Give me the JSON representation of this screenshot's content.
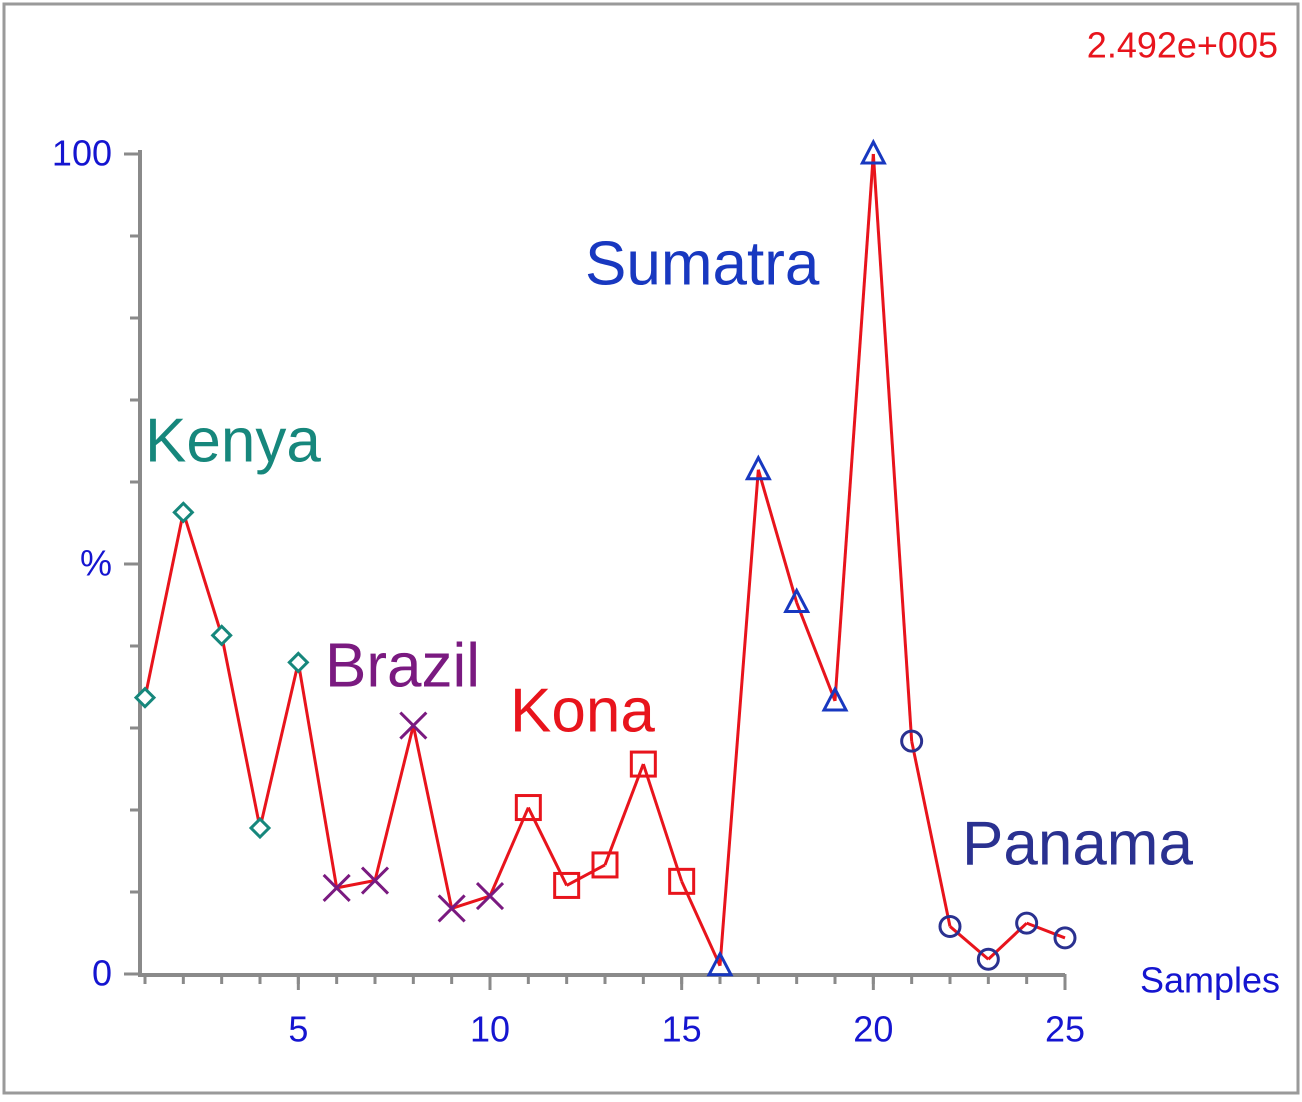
{
  "chart_data": {
    "type": "line",
    "scale_label": "2.492e+005",
    "x_label": "Samples",
    "line_color": "#e8141c",
    "xlim": [
      1,
      25
    ],
    "xticks": [
      5,
      10,
      15,
      20,
      25
    ],
    "x_minor_ticks": [
      1,
      2,
      3,
      4,
      5,
      6,
      7,
      8,
      9,
      10,
      11,
      12,
      13,
      14,
      15,
      16,
      17,
      18,
      19,
      20,
      21,
      22,
      23,
      24,
      25
    ],
    "ylim": [
      0,
      100
    ],
    "yticks": [
      0,
      {
        "value": 50,
        "label": "%"
      },
      100
    ],
    "y_minor_ticks": [
      0,
      10,
      20,
      30,
      40,
      50,
      60,
      70,
      80,
      90,
      100
    ],
    "series": [
      {
        "name": "Kenya",
        "color": "#16877c",
        "marker": "diamond",
        "x": [
          1,
          2,
          3,
          4,
          5
        ],
        "values": [
          33.7,
          56.3,
          41.3,
          17.8,
          38.0
        ]
      },
      {
        "name": "Brazil",
        "color": "#7a1a80",
        "marker": "x",
        "x": [
          6,
          7,
          8,
          9,
          10
        ],
        "values": [
          10.5,
          11.4,
          30.3,
          8.0,
          9.5
        ]
      },
      {
        "name": "Kona",
        "color": "#e8141c",
        "marker": "square",
        "x": [
          11,
          12,
          13,
          14,
          15
        ],
        "values": [
          20.3,
          10.8,
          13.3,
          25.6,
          11.3
        ]
      },
      {
        "name": "Sumatra",
        "color": "#1838c0",
        "marker": "triangle",
        "x": [
          16,
          17,
          18,
          19,
          20
        ],
        "values": [
          1.0,
          61.5,
          45.3,
          33.3,
          100
        ]
      },
      {
        "name": "Panama",
        "color": "#2a3190",
        "marker": "circle",
        "x": [
          21,
          22,
          23,
          24,
          25
        ],
        "values": [
          28.4,
          5.8,
          1.8,
          6.2,
          4.4
        ]
      }
    ]
  }
}
